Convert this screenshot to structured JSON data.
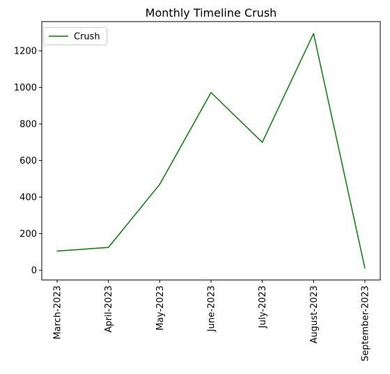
{
  "chart_data": {
    "type": "line",
    "title": "Monthly Timeline Crush",
    "xlabel": "",
    "ylabel": "",
    "categories": [
      "March-2023",
      "April-2023",
      "May-2023",
      "June-2023",
      "July-2023",
      "August-2023",
      "September-2023"
    ],
    "series": [
      {
        "name": "Crush",
        "color": "#008000",
        "values": [
          105,
          125,
          470,
          972,
          700,
          1295,
          12
        ]
      }
    ],
    "yticks": [
      0,
      200,
      400,
      600,
      800,
      1000,
      1200
    ],
    "ylim": [
      -53.15,
      1360.15
    ],
    "grid": false,
    "legend_position": "top-left"
  }
}
